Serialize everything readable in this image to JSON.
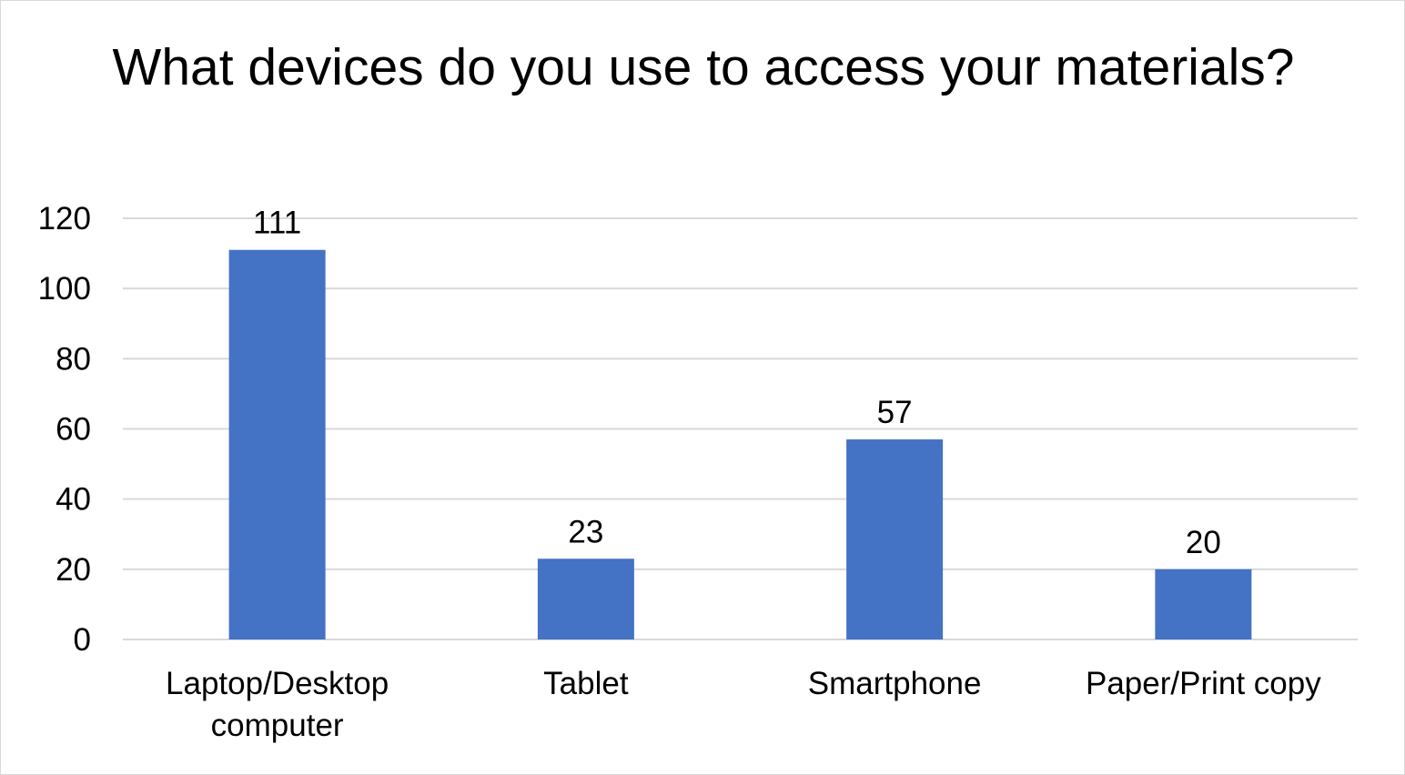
{
  "chart_data": {
    "type": "bar",
    "title": "What devices do you use to access your materials?",
    "categories": [
      "Laptop/Desktop computer",
      "Tablet",
      "Smartphone",
      "Paper/Print copy"
    ],
    "category_lines": [
      [
        "Laptop/Desktop",
        "computer"
      ],
      [
        "Tablet"
      ],
      [
        "Smartphone"
      ],
      [
        "Paper/Print copy"
      ]
    ],
    "values": [
      111,
      23,
      57,
      20
    ],
    "ylim": [
      0,
      120
    ],
    "yticks": [
      0,
      20,
      40,
      60,
      80,
      100,
      120
    ],
    "xlabel": "",
    "ylabel": "",
    "grid": true,
    "data_labels": true,
    "legend": "none",
    "bar_color": "#4472C4",
    "grid_color": "#d9d9d9"
  }
}
